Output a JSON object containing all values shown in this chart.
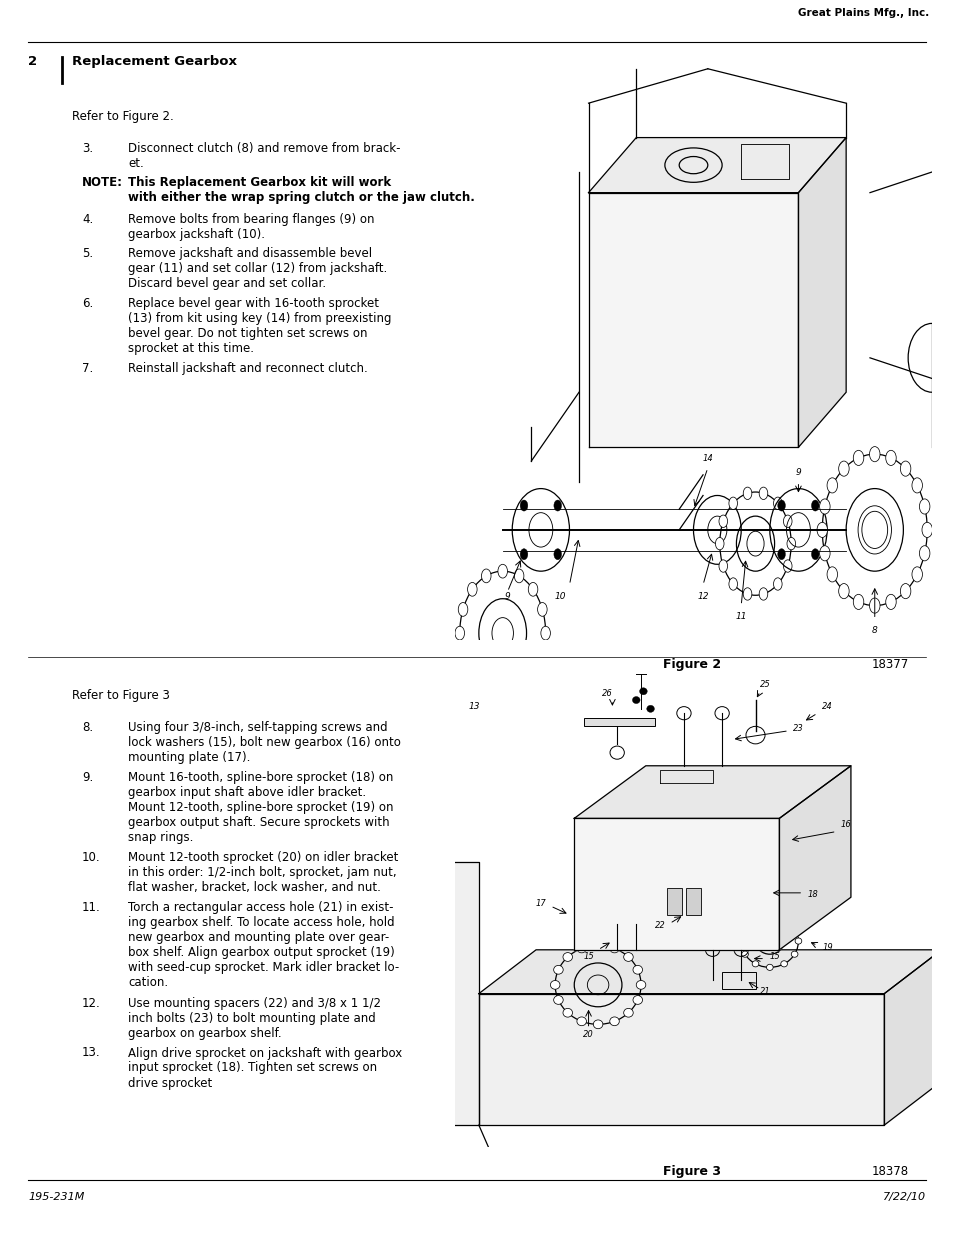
{
  "page_width": 9.54,
  "page_height": 12.35,
  "dpi": 100,
  "background_color": "#ffffff",
  "top_right_text": "Great Plains Mfg., Inc.",
  "page_number": "2",
  "section_title": "Replacement Gearbox",
  "footer_left": "195-231M",
  "footer_right": "7/22/10",
  "section1_ref": "Refer to Figure 2.",
  "section1_items": [
    {
      "num": "3.",
      "text": "Disconnect clutch (8) and remove from brack-\net.",
      "bold": false,
      "indent": true
    },
    {
      "num": "NOTE:",
      "text": "This Replacement Gearbox kit will work\nwith either the wrap spring clutch or the jaw clutch.",
      "bold": true,
      "indent": false
    },
    {
      "num": "4.",
      "text": "Remove bolts from bearing flanges (9) on\ngearbox jackshaft (10).",
      "bold": false,
      "indent": true
    },
    {
      "num": "5.",
      "text": "Remove jackshaft and disassemble bevel\ngear (11) and set collar (12) from jackshaft.\nDiscard bevel gear and set collar.",
      "bold": false,
      "indent": true
    },
    {
      "num": "6.",
      "text": "Replace bevel gear with 16-tooth sprocket\n(13) from kit using key (14) from preexisting\nbevel gear. Do not tighten set screws on\nsprocket at this time.",
      "bold": false,
      "indent": true
    },
    {
      "num": "7.",
      "text": "Reinstall jackshaft and reconnect clutch.",
      "bold": false,
      "indent": true
    }
  ],
  "fig2_caption": "Figure 2",
  "fig2_number": "18377",
  "section2_ref": "Refer to Figure 3",
  "section2_items": [
    {
      "num": "8.",
      "text": "Using four 3/8-inch, self-tapping screws and\nlock washers (15), bolt new gearbox (16) onto\nmounting plate (17).",
      "bold": false,
      "indent": true
    },
    {
      "num": "9.",
      "text": "Mount 16-tooth, spline-bore sprocket (18) on\ngearbox input shaft above idler bracket.\nMount 12-tooth, spline-bore sprocket (19) on\ngearbox output shaft. Secure sprockets with\nsnap rings.",
      "bold": false,
      "indent": true
    },
    {
      "num": "10.",
      "text": "Mount 12-tooth sprocket (20) on idler bracket\nin this order: 1/2-inch bolt, sprocket, jam nut,\nflat washer, bracket, lock washer, and nut.",
      "bold": false,
      "indent": true
    },
    {
      "num": "11.",
      "text": "Torch a rectangular access hole (21) in exist-\ning gearbox shelf. To locate access hole, hold\nnew gearbox and mounting plate over gear-\nbox shelf. Align gearbox output sprocket (19)\nwith seed-cup sprocket. Mark idler bracket lo-\ncation.",
      "bold": false,
      "indent": true
    },
    {
      "num": "12.",
      "text": "Use mounting spacers (22) and 3/8 x 1 1/2\ninch bolts (23) to bolt mounting plate and\ngearbox on gearbox shelf.",
      "bold": false,
      "indent": true
    },
    {
      "num": "13.",
      "text": "Align drive sprocket on jackshaft with gearbox\ninput sprocket (18). Tighten set screws on\ndrive sprocket",
      "bold": false,
      "indent": true
    }
  ],
  "fig3_caption": "Figure 3",
  "fig3_number": "18378",
  "text_fontsize": 8.5,
  "num_fontsize": 8.5
}
